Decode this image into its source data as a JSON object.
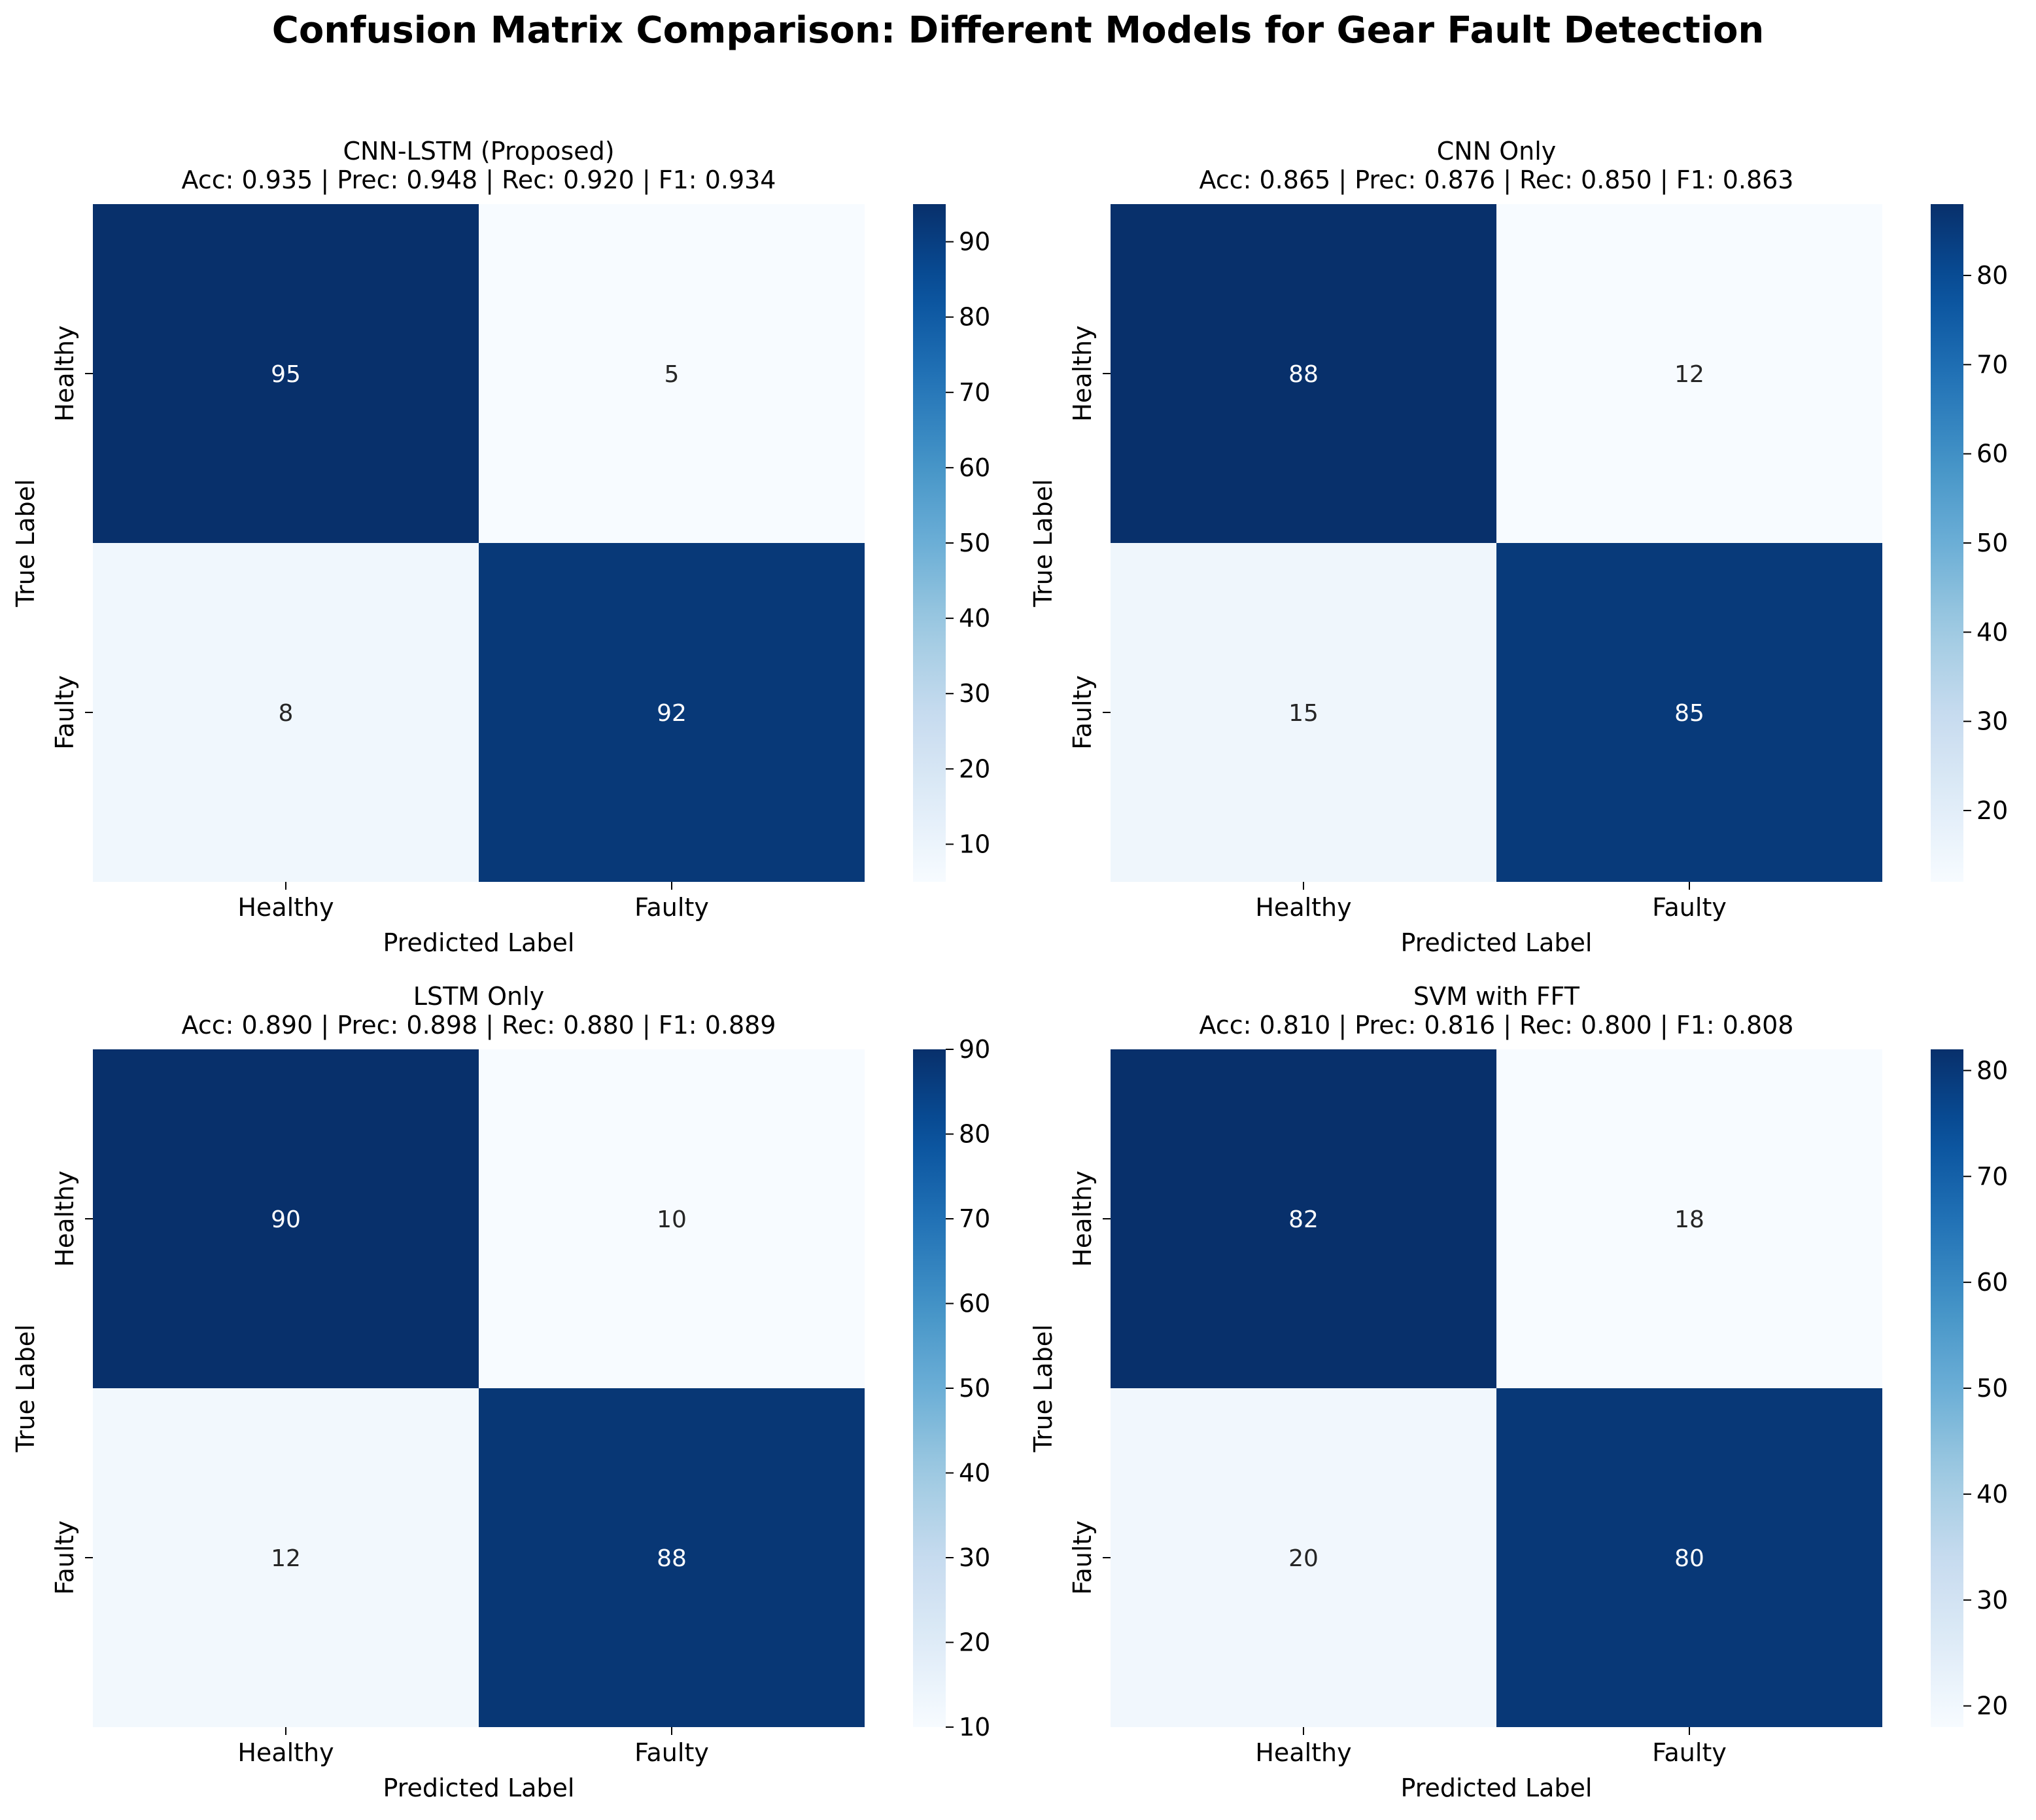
{
  "title": "Confusion Matrix Comparison: Different Models for Gear Fault Detection",
  "chart_data": [
    {
      "type": "heatmap",
      "title": "CNN-LSTM (Proposed)",
      "subtitle": "Acc: 0.935 | Prec: 0.948 | Rec: 0.920 | F1: 0.934",
      "xlabel": "Predicted Label",
      "ylabel": "True Label",
      "x_categories": [
        "Healthy",
        "Faulty"
      ],
      "y_categories": [
        "Healthy",
        "Faulty"
      ],
      "values": [
        [
          95,
          5
        ],
        [
          8,
          92
        ]
      ],
      "colorbar_range": [
        5,
        95
      ],
      "colorbar_ticks": [
        10,
        20,
        30,
        40,
        50,
        60,
        70,
        80,
        90
      ],
      "colormap": "Blues"
    },
    {
      "type": "heatmap",
      "title": "CNN Only",
      "subtitle": "Acc: 0.865 | Prec: 0.876 | Rec: 0.850 | F1: 0.863",
      "xlabel": "Predicted Label",
      "ylabel": "True Label",
      "x_categories": [
        "Healthy",
        "Faulty"
      ],
      "y_categories": [
        "Healthy",
        "Faulty"
      ],
      "values": [
        [
          88,
          12
        ],
        [
          15,
          85
        ]
      ],
      "colorbar_range": [
        12,
        88
      ],
      "colorbar_ticks": [
        20,
        30,
        40,
        50,
        60,
        70,
        80
      ],
      "colormap": "Blues"
    },
    {
      "type": "heatmap",
      "title": "LSTM Only",
      "subtitle": "Acc: 0.890 | Prec: 0.898 | Rec: 0.880 | F1: 0.889",
      "xlabel": "Predicted Label",
      "ylabel": "True Label",
      "x_categories": [
        "Healthy",
        "Faulty"
      ],
      "y_categories": [
        "Healthy",
        "Faulty"
      ],
      "values": [
        [
          90,
          10
        ],
        [
          12,
          88
        ]
      ],
      "colorbar_range": [
        10,
        90
      ],
      "colorbar_ticks": [
        10,
        20,
        30,
        40,
        50,
        60,
        70,
        80,
        90
      ],
      "colormap": "Blues"
    },
    {
      "type": "heatmap",
      "title": "SVM with FFT",
      "subtitle": "Acc: 0.810 | Prec: 0.816 | Rec: 0.800 | F1: 0.808",
      "xlabel": "Predicted Label",
      "ylabel": "True Label",
      "x_categories": [
        "Healthy",
        "Faulty"
      ],
      "y_categories": [
        "Healthy",
        "Faulty"
      ],
      "values": [
        [
          82,
          18
        ],
        [
          20,
          80
        ]
      ],
      "colorbar_range": [
        18,
        82
      ],
      "colorbar_ticks": [
        20,
        30,
        40,
        50,
        60,
        70,
        80
      ],
      "colormap": "Blues"
    }
  ]
}
